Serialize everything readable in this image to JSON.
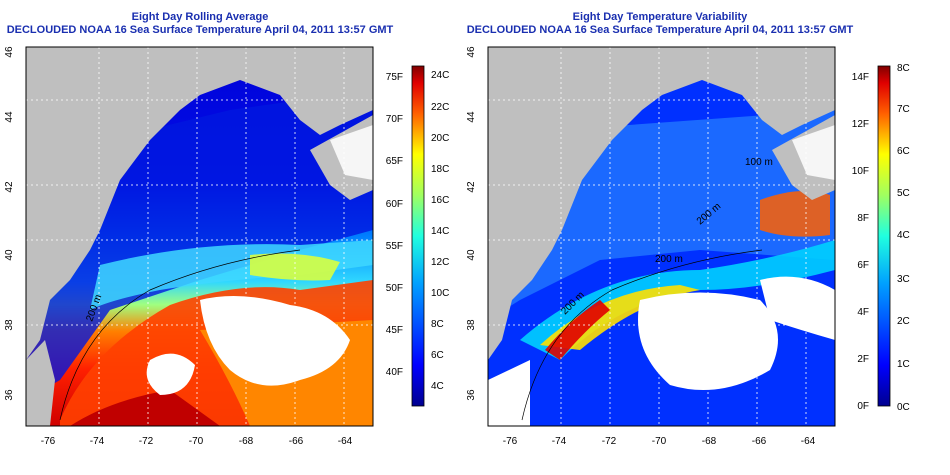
{
  "left_map": {
    "title_line1": "Eight Day Rolling Average",
    "title_line2": "DECLOUDED NOAA 16 Sea Surface Temperature April 04, 2011 13:57 GMT",
    "x_ticks": [
      "-76",
      "-74",
      "-72",
      "-70",
      "-68",
      "-66",
      "-64"
    ],
    "y_ticks": [
      "46",
      "44",
      "42",
      "40",
      "38",
      "36"
    ],
    "colorbar_f": [
      "75F",
      "70F",
      "65F",
      "60F",
      "55F",
      "50F",
      "45F",
      "40F"
    ],
    "colorbar_c": [
      "24C",
      "22C",
      "20C",
      "18C",
      "16C",
      "14C",
      "12C",
      "10C",
      "8C",
      "6C",
      "4C"
    ],
    "depth_labels": [
      "200 m"
    ]
  },
  "right_map": {
    "title_line1": "Eight Day Temperature Variability",
    "title_line2": "DECLOUDED NOAA 16 Sea Surface Temperature April 04, 2011 13:57 GMT",
    "x_ticks": [
      "-76",
      "-74",
      "-72",
      "-70",
      "-68",
      "-66",
      "-64"
    ],
    "y_ticks": [
      "46",
      "44",
      "42",
      "40",
      "38",
      "36"
    ],
    "colorbar_f": [
      "14F",
      "12F",
      "10F",
      "8F",
      "6F",
      "4F",
      "2F",
      "0F"
    ],
    "colorbar_c": [
      "8C",
      "7C",
      "6C",
      "5C",
      "4C",
      "3C",
      "2C",
      "1C",
      "0C"
    ],
    "depth_labels": [
      "200 m",
      "200 m",
      "200 m",
      "100 m"
    ]
  },
  "colors": {
    "land": "#bfbfbf",
    "title": "#1a2fb0",
    "jet_scale": [
      "#00008f",
      "#0000ff",
      "#0080ff",
      "#00ffff",
      "#80ff80",
      "#ffff00",
      "#ff8000",
      "#ff0000",
      "#800000"
    ]
  }
}
